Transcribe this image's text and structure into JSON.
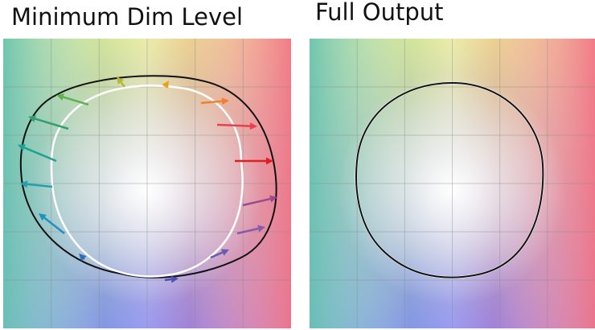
{
  "panels": [
    {
      "title": "Minimum Dim Level"
    },
    {
      "title": "Full Output"
    }
  ]
}
